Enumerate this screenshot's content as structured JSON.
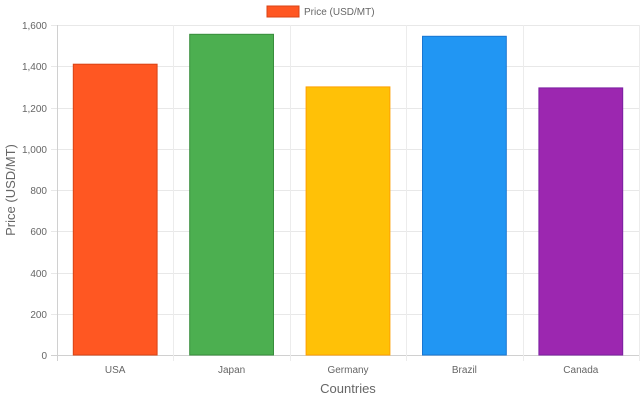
{
  "chart_data": {
    "type": "bar",
    "categories": [
      "USA",
      "Japan",
      "Germany",
      "Brazil",
      "Canada"
    ],
    "series": [
      {
        "name": "Price (USD/MT)",
        "values": [
          1410,
          1555,
          1300,
          1545,
          1295
        ],
        "colors": [
          "#FF5722",
          "#4CAF50",
          "#FFC107",
          "#2196F3",
          "#9C27B0"
        ],
        "border_colors": [
          "#D84315",
          "#388E3C",
          "#FFA000",
          "#1976D2",
          "#7B1FA2"
        ]
      }
    ],
    "xlabel": "Countries",
    "ylabel": "Price (USD/MT)",
    "ylim": [
      0,
      1600
    ],
    "y_ticks": [
      "0",
      "200",
      "400",
      "600",
      "800",
      "1,000",
      "1,200",
      "1,400",
      "1,600"
    ],
    "grid": true,
    "legend": {
      "position": "top",
      "label": "Price (USD/MT)",
      "swatch_color": "#FF5722",
      "swatch_border": "#D84315"
    }
  }
}
